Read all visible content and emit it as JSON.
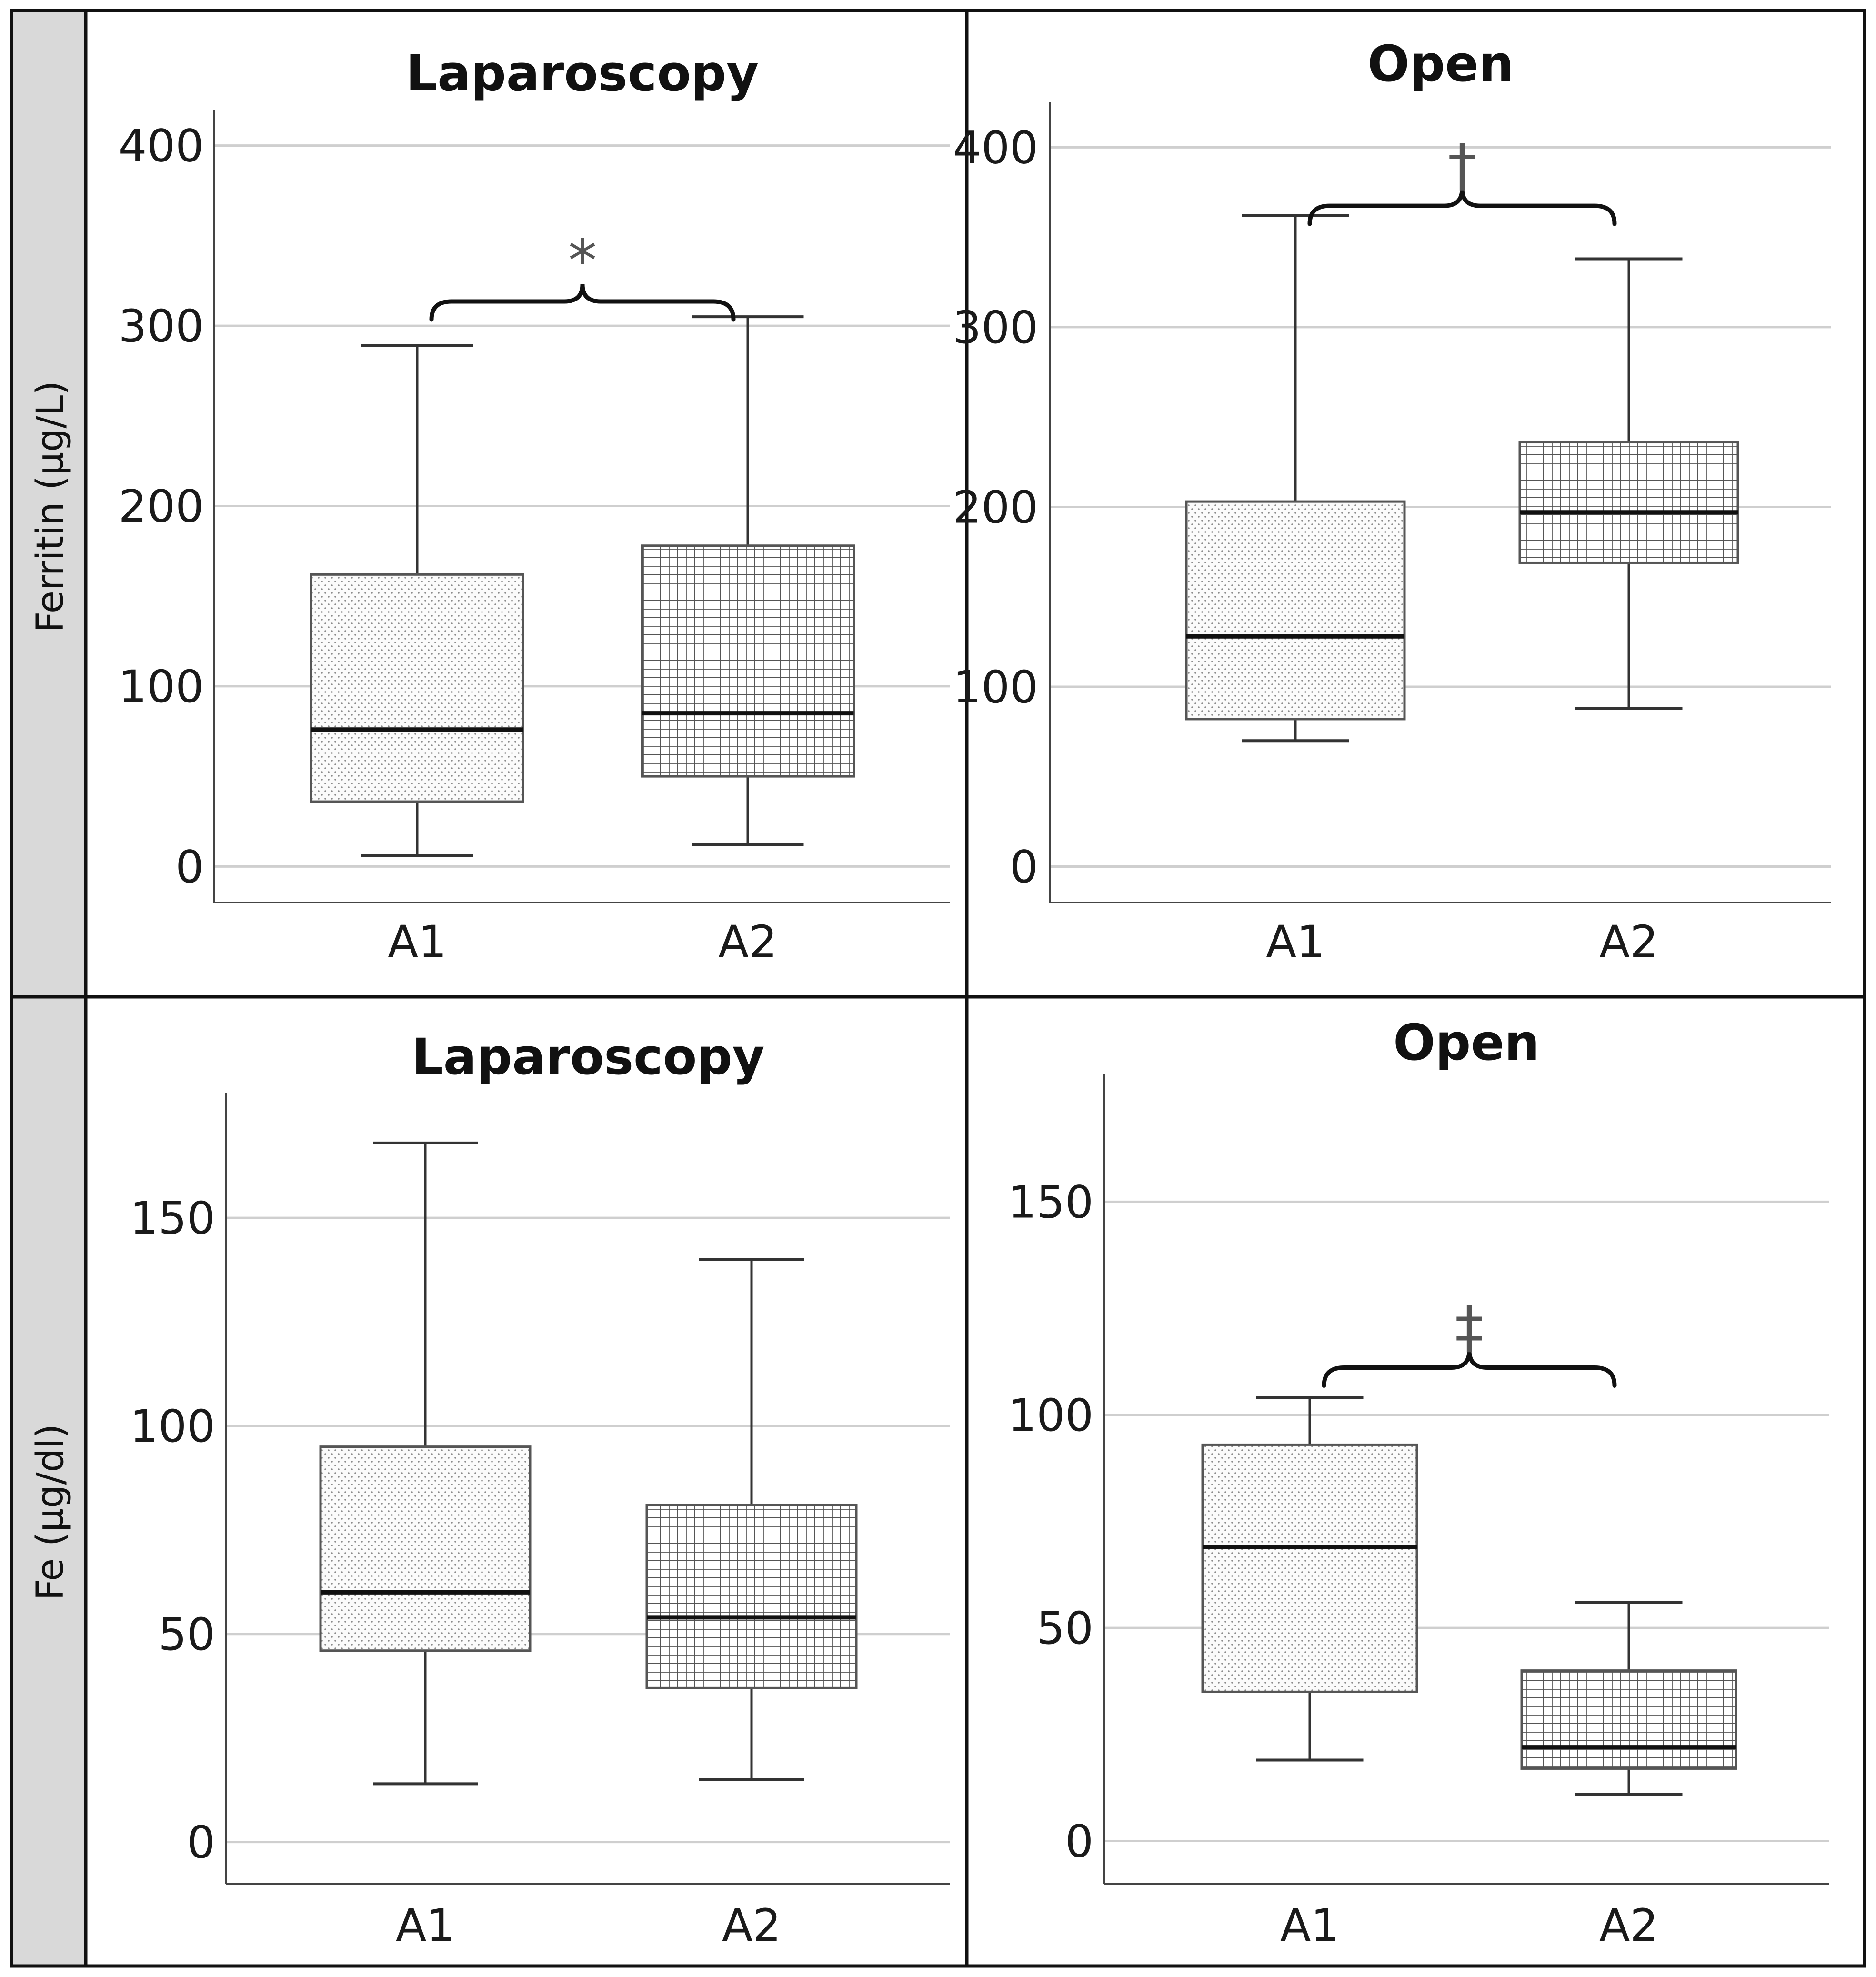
{
  "figure": {
    "row_labels": [
      "Ferritin (μg/L)",
      "Fe (μg/dl)"
    ]
  },
  "chart_data": [
    {
      "type": "boxplot",
      "title": "Laparoscopy",
      "ylabel": "Ferritin (μg/L)",
      "categories": [
        "A1",
        "A2"
      ],
      "ylim": [
        -20,
        420
      ],
      "yticks": [
        0,
        100,
        200,
        300,
        400
      ],
      "grid": true,
      "boxes": [
        {
          "category": "A1",
          "min": 6,
          "q1": 36,
          "median": 76,
          "q3": 162,
          "max": 289,
          "pattern": "dots"
        },
        {
          "category": "A2",
          "min": 12,
          "q1": 50,
          "median": 85,
          "q3": 178,
          "max": 305,
          "pattern": "grid"
        }
      ],
      "significance": {
        "symbol": "*",
        "from": "A1",
        "to": "A2",
        "y": 318
      }
    },
    {
      "type": "boxplot",
      "title": "Open",
      "ylabel": "Ferritin (μg/L)",
      "categories": [
        "A1",
        "A2"
      ],
      "ylim": [
        -20,
        425
      ],
      "yticks": [
        0,
        100,
        200,
        300,
        400
      ],
      "grid": true,
      "boxes": [
        {
          "category": "A1",
          "min": 70,
          "q1": 82,
          "median": 128,
          "q3": 203,
          "max": 362,
          "pattern": "dots"
        },
        {
          "category": "A2",
          "min": 88,
          "q1": 169,
          "median": 197,
          "q3": 236,
          "max": 338,
          "pattern": "grid"
        }
      ],
      "significance": {
        "symbol": "†",
        "from": "A1",
        "to": "A2",
        "y": 372
      }
    },
    {
      "type": "boxplot",
      "title": "Laparoscopy",
      "ylabel": "Fe (μg/dl)",
      "categories": [
        "A1",
        "A2"
      ],
      "ylim": [
        -10,
        180
      ],
      "yticks": [
        0,
        50,
        100,
        150
      ],
      "grid": true,
      "boxes": [
        {
          "category": "A1",
          "min": 14,
          "q1": 46,
          "median": 60,
          "q3": 95,
          "max": 168,
          "pattern": "dots"
        },
        {
          "category": "A2",
          "min": 15,
          "q1": 37,
          "median": 54,
          "q3": 81,
          "max": 140,
          "pattern": "grid"
        }
      ],
      "significance": null
    },
    {
      "type": "boxplot",
      "title": "Open",
      "ylabel": "Fe (μg/dl)",
      "categories": [
        "A1",
        "A2"
      ],
      "ylim": [
        -10,
        180
      ],
      "yticks": [
        0,
        50,
        100,
        150
      ],
      "grid": true,
      "boxes": [
        {
          "category": "A1",
          "min": 19,
          "q1": 35,
          "median": 69,
          "q3": 93,
          "max": 104,
          "pattern": "dots"
        },
        {
          "category": "A2",
          "min": 11,
          "q1": 17,
          "median": 22,
          "q3": 40,
          "max": 56,
          "pattern": "grid"
        }
      ],
      "significance": {
        "symbol": "‡",
        "from": "A1",
        "to": "A2",
        "y": 113
      }
    }
  ]
}
